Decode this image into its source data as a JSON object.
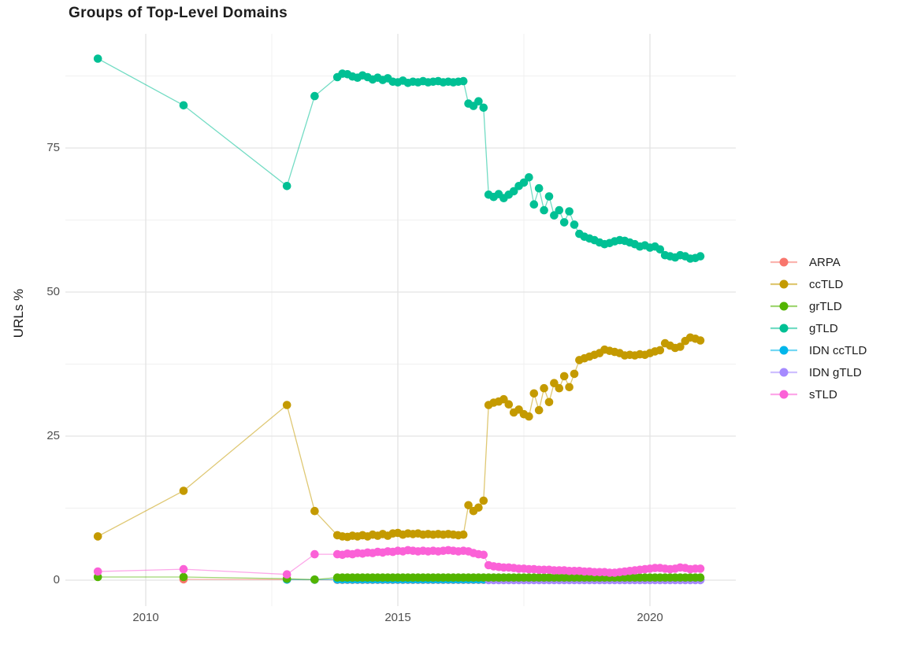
{
  "title": "Groups of Top-Level Domains",
  "axes": {
    "y_label": "URLs %",
    "y_ticks": [
      "0",
      "25",
      "50",
      "75"
    ],
    "y_tick_values": [
      0,
      25,
      50,
      75
    ],
    "y_minor": [
      12.5,
      37.5,
      62.5,
      87.5
    ],
    "x_ticks": [
      "2010",
      "2015",
      "2020"
    ],
    "x_tick_values": [
      2010,
      2015,
      2020
    ],
    "x_minor": [
      2012.5,
      2017.5
    ]
  },
  "style": {
    "background": "#ffffff",
    "major_grid": "#e3e3e3",
    "minor_grid": "#f0f0f0",
    "tick_text_color": "#4f4f4f",
    "text_color": "#1d1d1d",
    "line_opacity": 0.55,
    "point_radius": 5.3
  },
  "legend": [
    {
      "label": "ARPA",
      "color": "#F8766D"
    },
    {
      "label": "ccTLD",
      "color": "#C49A00"
    },
    {
      "label": "grTLD",
      "color": "#53B400"
    },
    {
      "label": "gTLD",
      "color": "#00C094"
    },
    {
      "label": "IDN ccTLD",
      "color": "#00B6EB"
    },
    {
      "label": "IDN gTLD",
      "color": "#A58AFF"
    },
    {
      "label": "sTLD",
      "color": "#FB61D7"
    }
  ],
  "chart_data": {
    "type": "line",
    "title": "Groups of Top-Level Domains",
    "xlabel": "",
    "ylabel": "URLs %",
    "x_range": [
      2008.4,
      2021.7
    ],
    "y_range": [
      -4.2,
      95
    ],
    "grid": true,
    "legend_position": "right",
    "draw_order": [
      "ARPA",
      "IDN ccTLD",
      "IDN gTLD",
      "ccTLD",
      "gTLD",
      "grTLD",
      "sTLD"
    ],
    "series": [
      {
        "name": "ARPA",
        "color": "#F8766D",
        "points": [
          [
            2010.75,
            0.15
          ],
          [
            2012.8,
            0.1
          ]
        ],
        "flat": {
          "from": 2013.8,
          "to": 2021.0,
          "step": 0.1,
          "value": 0.05
        }
      },
      {
        "name": "ccTLD",
        "color": "#C49A00",
        "points": [
          [
            2009.05,
            7.6
          ],
          [
            2010.75,
            15.5
          ],
          [
            2012.8,
            30.4
          ],
          [
            2013.35,
            12.0
          ],
          [
            2013.8,
            7.8
          ],
          [
            2013.9,
            7.6
          ],
          [
            2014.0,
            7.5
          ],
          [
            2014.1,
            7.7
          ],
          [
            2014.2,
            7.6
          ],
          [
            2014.3,
            7.8
          ],
          [
            2014.4,
            7.6
          ],
          [
            2014.5,
            7.9
          ],
          [
            2014.6,
            7.7
          ],
          [
            2014.7,
            8.0
          ],
          [
            2014.8,
            7.7
          ],
          [
            2014.9,
            8.1
          ],
          [
            2015.0,
            8.2
          ],
          [
            2015.1,
            7.9
          ],
          [
            2015.2,
            8.1
          ],
          [
            2015.3,
            8.0
          ],
          [
            2015.4,
            8.1
          ],
          [
            2015.5,
            7.9
          ],
          [
            2015.6,
            8.0
          ],
          [
            2015.7,
            7.9
          ],
          [
            2015.8,
            8.0
          ],
          [
            2015.9,
            7.9
          ],
          [
            2016.0,
            8.0
          ],
          [
            2016.1,
            7.9
          ],
          [
            2016.2,
            7.8
          ],
          [
            2016.3,
            7.9
          ],
          [
            2016.4,
            13.0
          ],
          [
            2016.5,
            12.0
          ],
          [
            2016.6,
            12.6
          ],
          [
            2016.7,
            13.8
          ],
          [
            2016.8,
            30.4
          ],
          [
            2016.9,
            30.8
          ],
          [
            2017.0,
            31.0
          ],
          [
            2017.1,
            31.4
          ],
          [
            2017.2,
            30.5
          ],
          [
            2017.3,
            29.1
          ],
          [
            2017.4,
            29.6
          ],
          [
            2017.5,
            28.8
          ],
          [
            2017.6,
            28.4
          ],
          [
            2017.7,
            32.4
          ],
          [
            2017.8,
            29.5
          ],
          [
            2017.9,
            33.3
          ],
          [
            2018.0,
            30.9
          ],
          [
            2018.1,
            34.2
          ],
          [
            2018.2,
            33.3
          ],
          [
            2018.3,
            35.4
          ],
          [
            2018.4,
            33.5
          ],
          [
            2018.5,
            35.8
          ],
          [
            2018.6,
            38.2
          ],
          [
            2018.7,
            38.5
          ],
          [
            2018.8,
            38.8
          ],
          [
            2018.9,
            39.1
          ],
          [
            2019.0,
            39.4
          ],
          [
            2019.1,
            40.0
          ],
          [
            2019.2,
            39.8
          ],
          [
            2019.3,
            39.6
          ],
          [
            2019.4,
            39.4
          ],
          [
            2019.5,
            39.0
          ],
          [
            2019.6,
            39.1
          ],
          [
            2019.7,
            39.0
          ],
          [
            2019.8,
            39.2
          ],
          [
            2019.9,
            39.1
          ],
          [
            2020.0,
            39.4
          ],
          [
            2020.1,
            39.7
          ],
          [
            2020.2,
            39.9
          ],
          [
            2020.3,
            41.1
          ],
          [
            2020.4,
            40.7
          ],
          [
            2020.5,
            40.3
          ],
          [
            2020.6,
            40.5
          ],
          [
            2020.7,
            41.5
          ],
          [
            2020.8,
            42.1
          ],
          [
            2020.9,
            41.9
          ],
          [
            2021.0,
            41.6
          ]
        ]
      },
      {
        "name": "grTLD",
        "color": "#53B400",
        "points": [
          [
            2009.05,
            0.55
          ],
          [
            2010.75,
            0.55
          ],
          [
            2012.8,
            0.25
          ],
          [
            2013.35,
            0.1
          ]
        ],
        "flat": {
          "from": 2013.8,
          "to": 2021.0,
          "step": 0.1,
          "value": 0.45
        }
      },
      {
        "name": "gTLD",
        "color": "#00C094",
        "points": [
          [
            2009.05,
            90.5
          ],
          [
            2010.75,
            82.4
          ],
          [
            2012.8,
            68.4
          ],
          [
            2013.35,
            84.0
          ],
          [
            2013.8,
            87.3
          ],
          [
            2013.9,
            87.9
          ],
          [
            2014.0,
            87.8
          ],
          [
            2014.1,
            87.4
          ],
          [
            2014.2,
            87.2
          ],
          [
            2014.3,
            87.6
          ],
          [
            2014.4,
            87.3
          ],
          [
            2014.5,
            86.9
          ],
          [
            2014.6,
            87.2
          ],
          [
            2014.7,
            86.8
          ],
          [
            2014.8,
            87.1
          ],
          [
            2014.9,
            86.5
          ],
          [
            2015.0,
            86.4
          ],
          [
            2015.1,
            86.7
          ],
          [
            2015.2,
            86.3
          ],
          [
            2015.3,
            86.5
          ],
          [
            2015.4,
            86.4
          ],
          [
            2015.5,
            86.6
          ],
          [
            2015.6,
            86.4
          ],
          [
            2015.7,
            86.5
          ],
          [
            2015.8,
            86.6
          ],
          [
            2015.9,
            86.4
          ],
          [
            2016.0,
            86.5
          ],
          [
            2016.1,
            86.4
          ],
          [
            2016.2,
            86.5
          ],
          [
            2016.3,
            86.6
          ],
          [
            2016.4,
            82.7
          ],
          [
            2016.5,
            82.3
          ],
          [
            2016.6,
            83.1
          ],
          [
            2016.7,
            82.0
          ],
          [
            2016.8,
            66.9
          ],
          [
            2016.9,
            66.5
          ],
          [
            2017.0,
            67.0
          ],
          [
            2017.1,
            66.3
          ],
          [
            2017.2,
            66.9
          ],
          [
            2017.3,
            67.5
          ],
          [
            2017.4,
            68.4
          ],
          [
            2017.5,
            69.0
          ],
          [
            2017.6,
            69.9
          ],
          [
            2017.7,
            65.2
          ],
          [
            2017.8,
            68.0
          ],
          [
            2017.9,
            64.2
          ],
          [
            2018.0,
            66.6
          ],
          [
            2018.1,
            63.3
          ],
          [
            2018.2,
            64.2
          ],
          [
            2018.3,
            62.1
          ],
          [
            2018.4,
            64.0
          ],
          [
            2018.5,
            61.7
          ],
          [
            2018.6,
            60.1
          ],
          [
            2018.7,
            59.6
          ],
          [
            2018.8,
            59.3
          ],
          [
            2018.9,
            59.0
          ],
          [
            2019.0,
            58.6
          ],
          [
            2019.1,
            58.3
          ],
          [
            2019.2,
            58.5
          ],
          [
            2019.3,
            58.8
          ],
          [
            2019.4,
            59.0
          ],
          [
            2019.5,
            58.9
          ],
          [
            2019.6,
            58.6
          ],
          [
            2019.7,
            58.3
          ],
          [
            2019.8,
            57.9
          ],
          [
            2019.9,
            58.1
          ],
          [
            2020.0,
            57.7
          ],
          [
            2020.1,
            57.9
          ],
          [
            2020.2,
            57.4
          ],
          [
            2020.3,
            56.4
          ],
          [
            2020.4,
            56.2
          ],
          [
            2020.5,
            56.0
          ],
          [
            2020.6,
            56.4
          ],
          [
            2020.7,
            56.2
          ],
          [
            2020.8,
            55.8
          ],
          [
            2020.9,
            55.9
          ],
          [
            2021.0,
            56.2
          ]
        ]
      },
      {
        "name": "IDN ccTLD",
        "color": "#00B6EB",
        "points": [
          [
            2012.8,
            0.1
          ],
          [
            2013.35,
            0.08
          ]
        ],
        "flat": {
          "from": 2013.8,
          "to": 2021.0,
          "step": 0.1,
          "value": 0.1
        }
      },
      {
        "name": "IDN gTLD",
        "color": "#A58AFF",
        "flat": {
          "from": 2016.8,
          "to": 2021.0,
          "step": 0.1,
          "value": 0.02
        }
      },
      {
        "name": "sTLD",
        "color": "#FB61D7",
        "points": [
          [
            2009.05,
            1.5
          ],
          [
            2010.75,
            1.9
          ],
          [
            2012.8,
            1.0
          ],
          [
            2013.35,
            4.5
          ],
          [
            2013.8,
            4.5
          ],
          [
            2013.9,
            4.4
          ],
          [
            2014.0,
            4.6
          ],
          [
            2014.1,
            4.5
          ],
          [
            2014.2,
            4.7
          ],
          [
            2014.3,
            4.6
          ],
          [
            2014.4,
            4.8
          ],
          [
            2014.5,
            4.7
          ],
          [
            2014.6,
            4.9
          ],
          [
            2014.7,
            4.8
          ],
          [
            2014.8,
            5.0
          ],
          [
            2014.9,
            4.9
          ],
          [
            2015.0,
            5.1
          ],
          [
            2015.1,
            5.0
          ],
          [
            2015.2,
            5.2
          ],
          [
            2015.3,
            5.1
          ],
          [
            2015.4,
            5.0
          ],
          [
            2015.5,
            5.1
          ],
          [
            2015.6,
            5.0
          ],
          [
            2015.7,
            5.1
          ],
          [
            2015.8,
            5.0
          ],
          [
            2015.9,
            5.1
          ],
          [
            2016.0,
            5.2
          ],
          [
            2016.1,
            5.1
          ],
          [
            2016.2,
            5.0
          ],
          [
            2016.3,
            5.1
          ],
          [
            2016.4,
            5.0
          ],
          [
            2016.5,
            4.7
          ],
          [
            2016.6,
            4.5
          ],
          [
            2016.7,
            4.4
          ],
          [
            2016.8,
            2.6
          ],
          [
            2016.9,
            2.4
          ],
          [
            2017.0,
            2.3
          ],
          [
            2017.1,
            2.2
          ],
          [
            2017.2,
            2.2
          ],
          [
            2017.3,
            2.1
          ],
          [
            2017.4,
            2.0
          ],
          [
            2017.5,
            2.0
          ],
          [
            2017.6,
            1.9
          ],
          [
            2017.7,
            1.9
          ],
          [
            2017.8,
            1.8
          ],
          [
            2017.9,
            1.8
          ],
          [
            2018.0,
            1.8
          ],
          [
            2018.1,
            1.7
          ],
          [
            2018.2,
            1.7
          ],
          [
            2018.3,
            1.7
          ],
          [
            2018.4,
            1.6
          ],
          [
            2018.5,
            1.6
          ],
          [
            2018.6,
            1.6
          ],
          [
            2018.7,
            1.5
          ],
          [
            2018.8,
            1.5
          ],
          [
            2018.9,
            1.4
          ],
          [
            2019.0,
            1.4
          ],
          [
            2019.1,
            1.4
          ],
          [
            2019.2,
            1.3
          ],
          [
            2019.3,
            1.3
          ],
          [
            2019.4,
            1.4
          ],
          [
            2019.5,
            1.5
          ],
          [
            2019.6,
            1.6
          ],
          [
            2019.7,
            1.7
          ],
          [
            2019.8,
            1.8
          ],
          [
            2019.9,
            1.9
          ],
          [
            2020.0,
            2.0
          ],
          [
            2020.1,
            2.1
          ],
          [
            2020.2,
            2.1
          ],
          [
            2020.3,
            2.0
          ],
          [
            2020.4,
            1.9
          ],
          [
            2020.5,
            2.0
          ],
          [
            2020.6,
            2.2
          ],
          [
            2020.7,
            2.1
          ],
          [
            2020.8,
            1.9
          ],
          [
            2020.9,
            2.0
          ],
          [
            2021.0,
            2.0
          ]
        ]
      }
    ]
  }
}
